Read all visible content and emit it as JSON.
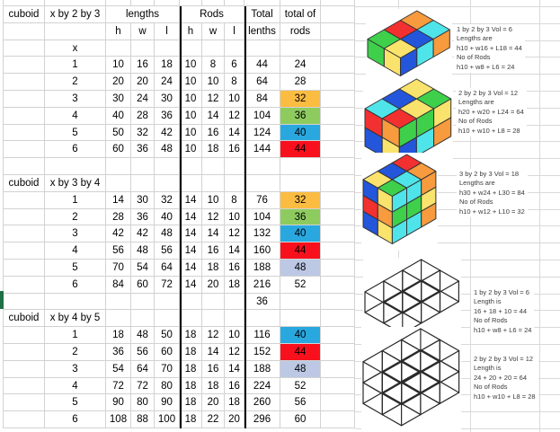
{
  "palette": {
    "highlight_orange": "#FBBC42",
    "highlight_green": "#8ECB5F",
    "highlight_blue": "#29A8E0",
    "highlight_red": "#F8101C",
    "highlight_lavender": "#BCC8E4",
    "selection_green": "#1E7145",
    "cube_yellow": "#FAE36C",
    "cube_green": "#3ED04B",
    "cube_red": "#F23030",
    "cube_blue": "#2356DB",
    "cube_cyan": "#4FE4EA",
    "cube_orange": "#F79B3E"
  },
  "table": {
    "headers": {
      "cuboid": "cuboid",
      "lengths": "lengths",
      "rods": "Rods",
      "total_line1": "Total",
      "total_line2": "lenths",
      "total_rods_line1": "total of",
      "total_rods_line2": "rods",
      "h": "h",
      "w": "w",
      "l": "l",
      "x": "x"
    },
    "sections": [
      {
        "label": "cuboid",
        "formula": "x by 2 by 3",
        "rows": [
          {
            "n": "1",
            "lengths": [
              "10",
              "16",
              "18"
            ],
            "rods": [
              "10",
              "8",
              "6"
            ],
            "total": "44",
            "total_rods": "24",
            "fill": null
          },
          {
            "n": "2",
            "lengths": [
              "20",
              "20",
              "24"
            ],
            "rods": [
              "10",
              "10",
              "8"
            ],
            "total": "64",
            "total_rods": "28",
            "fill": null
          },
          {
            "n": "3",
            "lengths": [
              "30",
              "24",
              "30"
            ],
            "rods": [
              "10",
              "12",
              "10"
            ],
            "total": "84",
            "total_rods": "32",
            "fill": "highlight_orange"
          },
          {
            "n": "4",
            "lengths": [
              "40",
              "28",
              "36"
            ],
            "rods": [
              "10",
              "14",
              "12"
            ],
            "total": "104",
            "total_rods": "36",
            "fill": "highlight_green"
          },
          {
            "n": "5",
            "lengths": [
              "50",
              "32",
              "42"
            ],
            "rods": [
              "10",
              "16",
              "14"
            ],
            "total": "124",
            "total_rods": "40",
            "fill": "highlight_blue"
          },
          {
            "n": "6",
            "lengths": [
              "60",
              "36",
              "48"
            ],
            "rods": [
              "10",
              "18",
              "16"
            ],
            "total": "144",
            "total_rods": "44",
            "fill": "highlight_red"
          }
        ]
      },
      {
        "label": "cuboid",
        "formula": "x by 3 by 4",
        "rows": [
          {
            "n": "1",
            "lengths": [
              "14",
              "30",
              "32"
            ],
            "rods": [
              "14",
              "10",
              "8"
            ],
            "total": "76",
            "total_rods": "32",
            "fill": "highlight_orange"
          },
          {
            "n": "2",
            "lengths": [
              "28",
              "36",
              "40"
            ],
            "rods": [
              "14",
              "12",
              "10"
            ],
            "total": "104",
            "total_rods": "36",
            "fill": "highlight_green"
          },
          {
            "n": "3",
            "lengths": [
              "42",
              "42",
              "48"
            ],
            "rods": [
              "14",
              "14",
              "12"
            ],
            "total": "132",
            "total_rods": "40",
            "fill": "highlight_blue"
          },
          {
            "n": "4",
            "lengths": [
              "56",
              "48",
              "56"
            ],
            "rods": [
              "14",
              "16",
              "14"
            ],
            "total": "160",
            "total_rods": "44",
            "fill": "highlight_red"
          },
          {
            "n": "5",
            "lengths": [
              "70",
              "54",
              "64"
            ],
            "rods": [
              "14",
              "18",
              "16"
            ],
            "total": "188",
            "total_rods": "48",
            "fill": "highlight_lavender"
          },
          {
            "n": "6",
            "lengths": [
              "84",
              "60",
              "72"
            ],
            "rods": [
              "14",
              "20",
              "18"
            ],
            "total": "216",
            "total_rods": "52",
            "fill": null
          }
        ],
        "extra_total": "36"
      },
      {
        "label": "cuboid",
        "formula": "x by 4 by 5",
        "rows": [
          {
            "n": "1",
            "lengths": [
              "18",
              "48",
              "50"
            ],
            "rods": [
              "18",
              "12",
              "10"
            ],
            "total": "116",
            "total_rods": "40",
            "fill": "highlight_blue"
          },
          {
            "n": "2",
            "lengths": [
              "36",
              "56",
              "60"
            ],
            "rods": [
              "18",
              "14",
              "12"
            ],
            "total": "152",
            "total_rods": "44",
            "fill": "highlight_red"
          },
          {
            "n": "3",
            "lengths": [
              "54",
              "64",
              "70"
            ],
            "rods": [
              "18",
              "16",
              "14"
            ],
            "total": "188",
            "total_rods": "48",
            "fill": "highlight_lavender"
          },
          {
            "n": "4",
            "lengths": [
              "72",
              "72",
              "80"
            ],
            "rods": [
              "18",
              "18",
              "16"
            ],
            "total": "224",
            "total_rods": "52",
            "fill": null
          },
          {
            "n": "5",
            "lengths": [
              "90",
              "80",
              "90"
            ],
            "rods": [
              "18",
              "20",
              "18"
            ],
            "total": "260",
            "total_rods": "56",
            "fill": null
          },
          {
            "n": "6",
            "lengths": [
              "108",
              "88",
              "100"
            ],
            "rods": [
              "18",
              "22",
              "20"
            ],
            "total": "296",
            "total_rods": "60",
            "fill": null
          }
        ]
      }
    ]
  },
  "figures": [
    {
      "kind": "solid",
      "dims": {
        "length": 3,
        "depth": 2,
        "height": 1
      },
      "colors": {
        "top": [
          [
            "cube_green",
            "cube_red",
            "cube_orange"
          ],
          [
            "cube_yellow",
            "cube_blue",
            "cube_cyan"
          ]
        ],
        "left": [
          [
            "cube_yellow",
            "cube_green"
          ]
        ],
        "right": [
          [
            "cube_blue",
            "cube_cyan",
            "cube_orange"
          ]
        ]
      },
      "caption": [
        "1 by 2 by 3 Vol = 6",
        "Lengths are",
        "h10 + w16 + L18 = 44",
        "No of Rods",
        "h10 + w8 + L6 = 24"
      ]
    },
    {
      "kind": "solid",
      "dims": {
        "length": 3,
        "depth": 2,
        "height": 2
      },
      "colors": {
        "top": [
          [
            "cube_cyan",
            "cube_blue",
            "cube_yellow"
          ],
          [
            "cube_red",
            "cube_yellow",
            "cube_green"
          ]
        ],
        "left": [
          [
            "cube_orange",
            "cube_red"
          ],
          [
            "cube_yellow",
            "cube_blue"
          ]
        ],
        "right": [
          [
            "cube_green",
            "cube_green",
            "cube_yellow"
          ],
          [
            "cube_blue",
            "cube_cyan",
            "cube_orange"
          ]
        ]
      },
      "caption": [
        "2 by 2 by 3 Vol = 12",
        "Lengths are",
        "h20 + w20 + L24 = 64",
        "No of Rods",
        "h10 + w10 + L8 = 28"
      ]
    },
    {
      "kind": "solid",
      "dims": {
        "length": 3,
        "depth": 2,
        "height": 3
      },
      "colors": {
        "top": [
          [
            "cube_yellow",
            "cube_blue",
            "cube_red"
          ],
          [
            "cube_green",
            "cube_cyan",
            "cube_orange"
          ]
        ],
        "left": [
          [
            "cube_yellow",
            "cube_blue"
          ],
          [
            "cube_orange",
            "cube_red"
          ],
          [
            "cube_yellow",
            "cube_blue"
          ]
        ],
        "right": [
          [
            "cube_cyan",
            "cube_cyan",
            "cube_orange"
          ],
          [
            "cube_green",
            "cube_green",
            "cube_yellow"
          ],
          [
            "cube_cyan",
            "cube_cyan",
            "cube_orange"
          ]
        ]
      },
      "caption": [
        "3 by 2 by 3 Vol = 18",
        "Lengths are",
        "h30 + w24 + L30 = 84",
        "No of Rods",
        "h10 + w12 + L10 = 32"
      ]
    },
    {
      "kind": "wire",
      "dims": {
        "length": 3,
        "depth": 2,
        "height": 1
      },
      "caption": [
        "1 by 2 by 3 Vol = 6",
        "Length is",
        "16 + 18 + 10 = 44",
        "No of Rods",
        "h10 + w8 + L6 = 24"
      ]
    },
    {
      "kind": "wire",
      "dims": {
        "length": 3,
        "depth": 2,
        "height": 2
      },
      "caption": [
        "2 by 2 by 3 Vol = 12",
        "Length is",
        "24 + 20 + 20 = 64",
        "No of Rods",
        "h10 + w10 + L8 = 28"
      ]
    }
  ]
}
